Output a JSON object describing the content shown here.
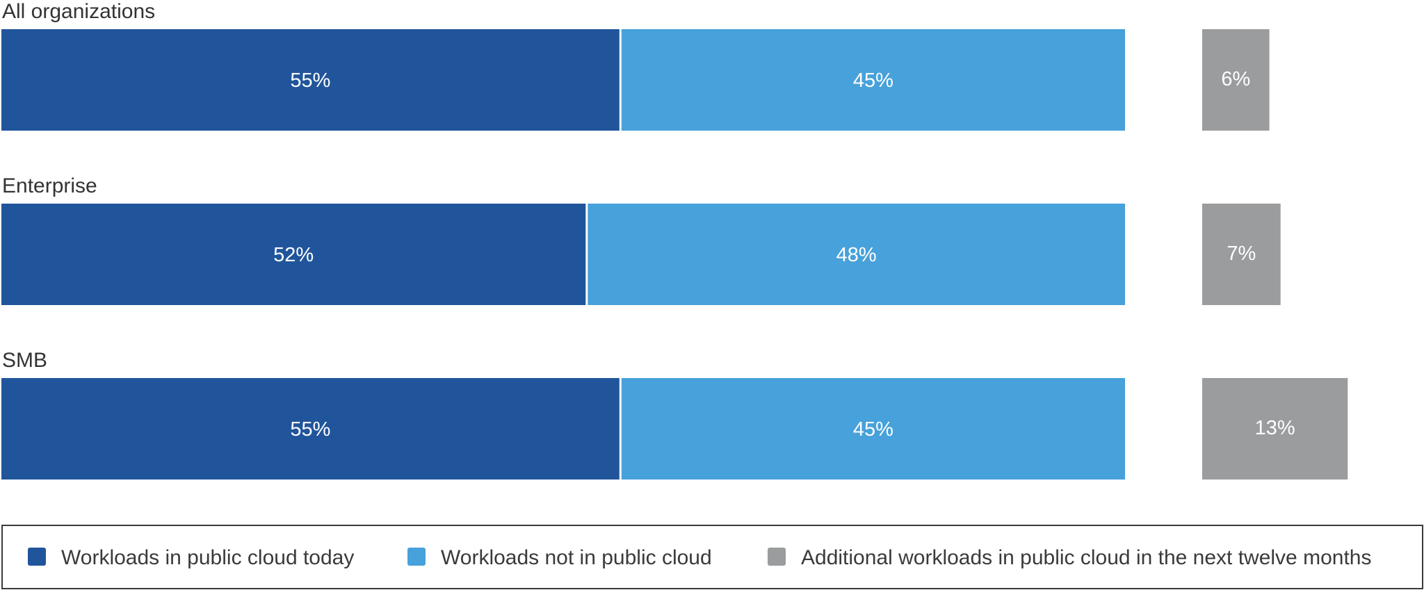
{
  "chart_data": {
    "type": "bar",
    "orientation": "horizontal",
    "stacked": true,
    "categories": [
      "All organizations",
      "Enterprise",
      "SMB"
    ],
    "series": [
      {
        "name": "Workloads in public cloud today",
        "color": "#21559b",
        "values": [
          55,
          52,
          55
        ],
        "labels": [
          "55%",
          "52%",
          "55%"
        ]
      },
      {
        "name": "Workloads not in public cloud",
        "color": "#47a1da",
        "values": [
          45,
          48,
          45
        ],
        "labels": [
          "45%",
          "48%",
          "45%"
        ]
      },
      {
        "name": "Additional workloads in public cloud in the next twelve months",
        "color": "#9b9c9e",
        "values": [
          6,
          7,
          13
        ],
        "labels": [
          "6%",
          "7%",
          "13%"
        ]
      }
    ],
    "legend_position": "bottom",
    "grid": false,
    "axes_visible": false
  }
}
